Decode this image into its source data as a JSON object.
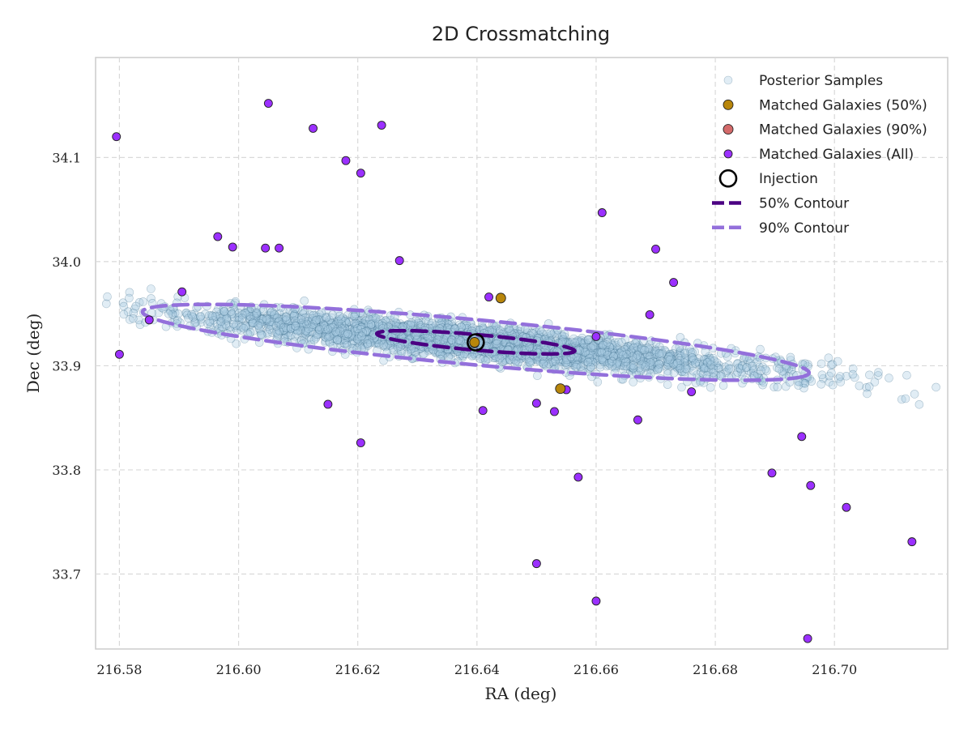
{
  "chart_data": {
    "type": "scatter",
    "title": "2D Crossmatching",
    "xlabel": "RA (deg)",
    "ylabel": "Dec (deg)",
    "xlim": [
      216.576,
      216.719
    ],
    "ylim": [
      33.628,
      34.196
    ],
    "xticks": [
      216.58,
      216.6,
      216.62,
      216.64,
      216.66,
      216.68,
      216.7
    ],
    "xtick_labels": [
      "216.58",
      "216.60",
      "216.62",
      "216.64",
      "216.66",
      "216.68",
      "216.70"
    ],
    "yticks": [
      33.7,
      33.8,
      33.9,
      34.0,
      34.1
    ],
    "ytick_labels": [
      "33.7",
      "33.8",
      "33.9",
      "34.0",
      "34.1"
    ],
    "grid": true,
    "legend_position": "top-right",
    "colors": {
      "posterior": "#a9cce3",
      "posterior_edge": "#2c5f7f",
      "matched_50": "#b8860b",
      "matched_90": "#d46a6a",
      "matched_all": "#9b30ff",
      "contour_50": "#4b0082",
      "contour_90": "#9370db",
      "injection": "#000000"
    },
    "posterior_samples": {
      "name": "Posterior Samples",
      "count": 3000,
      "center": [
        216.6398,
        33.9225
      ],
      "major_axis_angle_deg": -30.6,
      "sigma_major": 0.0287,
      "sigma_minor": 0.0071,
      "seed": 7
    },
    "injection": {
      "name": "Injection",
      "x": 216.6398,
      "y": 33.9225
    },
    "contour_50": {
      "name": "50% Contour",
      "center": [
        216.6398,
        33.9225
      ],
      "semi_major": 0.0189,
      "semi_minor": 0.0066,
      "angle_deg": -30.6
    },
    "contour_90": {
      "name": "90% Contour",
      "center": [
        216.6398,
        33.9225
      ],
      "semi_major": 0.064,
      "semi_minor": 0.019,
      "angle_deg": -30.6
    },
    "matched_50": {
      "name": "Matched Galaxies (50%)",
      "points": [
        [
          216.644,
          33.965
        ],
        [
          216.654,
          33.878
        ],
        [
          216.6396,
          33.9225
        ]
      ]
    },
    "matched_90": {
      "name": "Matched Galaxies (90%)",
      "points": [
        [
          216.6396,
          33.9215
        ]
      ]
    },
    "matched_all": {
      "name": "Matched Galaxies (All)",
      "points": [
        [
          216.5795,
          34.12
        ],
        [
          216.58,
          33.911
        ],
        [
          216.585,
          33.944
        ],
        [
          216.5905,
          33.971
        ],
        [
          216.5965,
          34.024
        ],
        [
          216.599,
          34.014
        ],
        [
          216.605,
          34.152
        ],
        [
          216.6045,
          34.013
        ],
        [
          216.6068,
          34.013
        ],
        [
          216.6125,
          34.128
        ],
        [
          216.615,
          33.863
        ],
        [
          216.618,
          34.097
        ],
        [
          216.6205,
          34.085
        ],
        [
          216.624,
          34.131
        ],
        [
          216.6205,
          33.826
        ],
        [
          216.627,
          34.001
        ],
        [
          216.641,
          33.857
        ],
        [
          216.642,
          33.966
        ],
        [
          216.65,
          33.864
        ],
        [
          216.653,
          33.856
        ],
        [
          216.655,
          33.877
        ],
        [
          216.66,
          33.674
        ],
        [
          216.661,
          34.047
        ],
        [
          216.657,
          33.793
        ],
        [
          216.66,
          33.928
        ],
        [
          216.667,
          33.848
        ],
        [
          216.669,
          33.949
        ],
        [
          216.67,
          34.012
        ],
        [
          216.673,
          33.98
        ],
        [
          216.676,
          33.875
        ],
        [
          216.6895,
          33.797
        ],
        [
          216.6945,
          33.832
        ],
        [
          216.6955,
          33.638
        ],
        [
          216.696,
          33.785
        ],
        [
          216.702,
          33.764
        ],
        [
          216.713,
          33.731
        ],
        [
          216.65,
          33.71
        ]
      ]
    },
    "legend": [
      {
        "key": "posterior",
        "label": "Posterior Samples"
      },
      {
        "key": "matched_50",
        "label": "Matched Galaxies (50%)"
      },
      {
        "key": "matched_90",
        "label": "Matched Galaxies (90%)"
      },
      {
        "key": "matched_all",
        "label": "Matched Galaxies (All)"
      },
      {
        "key": "injection",
        "label": "Injection"
      },
      {
        "key": "contour_50",
        "label": "50% Contour"
      },
      {
        "key": "contour_90",
        "label": "90% Contour"
      }
    ]
  }
}
